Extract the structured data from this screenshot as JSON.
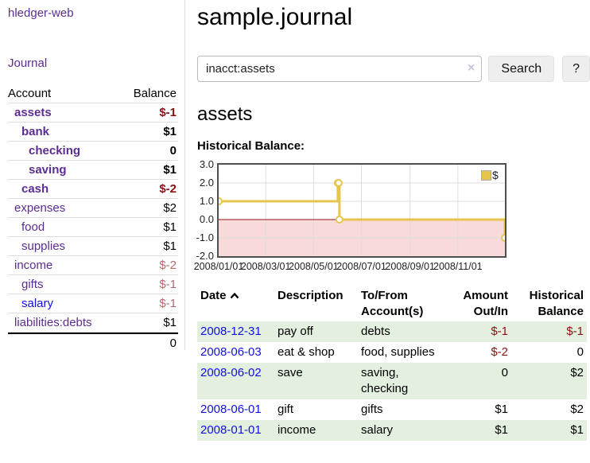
{
  "sidebar": {
    "app_title": "hledger-web",
    "journal_link": "Journal",
    "accounts": {
      "col_account": "Account",
      "col_balance": "Balance",
      "rows": [
        {
          "name": "assets",
          "balance": "$-1"
        },
        {
          "name": "bank",
          "balance": "$1"
        },
        {
          "name": "checking",
          "balance": "0"
        },
        {
          "name": "saving",
          "balance": "$1"
        },
        {
          "name": "cash",
          "balance": "$-2"
        },
        {
          "name": "expenses",
          "balance": "$2"
        },
        {
          "name": "food",
          "balance": "$1"
        },
        {
          "name": "supplies",
          "balance": "$1"
        },
        {
          "name": "income",
          "balance": "$-2"
        },
        {
          "name": "gifts",
          "balance": "$-1"
        },
        {
          "name": "salary",
          "balance": "$-1"
        },
        {
          "name": "liabilities:debts",
          "balance": "$1"
        }
      ],
      "total": "0"
    }
  },
  "header": {
    "title": "sample.journal"
  },
  "search": {
    "value": "inacct:assets",
    "clear_icon": "×",
    "button_label": "Search",
    "help_label": "?"
  },
  "account_view": {
    "heading": "assets",
    "chart_caption": "Historical Balance:"
  },
  "chart_data": {
    "type": "line",
    "step": true,
    "title": "Historical Balance",
    "legend": "$",
    "ylim": [
      -2,
      3
    ],
    "y_tick_values": [
      3,
      2,
      1,
      0,
      -1,
      -2
    ],
    "y_tick_labels": [
      "3.0",
      "2.0",
      "1.0",
      "0.0",
      "-1.0",
      "-2.0"
    ],
    "x_ticks": [
      "2008/01/01",
      "2008/03/01",
      "2008/05/01",
      "2008/07/01",
      "2008/09/01",
      "2008/11/01"
    ],
    "series": [
      {
        "name": "$",
        "color": "#e7c44d",
        "points": [
          [
            "2008/01/01",
            1
          ],
          [
            "2008/06/01",
            2
          ],
          [
            "2008/06/02",
            2
          ],
          [
            "2008/06/03",
            0
          ],
          [
            "2008/12/31",
            -1
          ]
        ]
      }
    ],
    "negative_fill": "#f9dada",
    "zero_line_color": "#8f1010",
    "grid_color": "#dddddd",
    "grid": true,
    "legend_position": "top-right"
  },
  "register": {
    "headers": {
      "date": "Date",
      "description": "Description",
      "accounts": "To/From Account(s)",
      "amount": "Amount Out/In",
      "balance": "Historical Balance"
    },
    "rows": [
      {
        "date": "2008-12-31",
        "description": "pay off",
        "accounts": "debts",
        "amount": "$-1",
        "balance": "$-1"
      },
      {
        "date": "2008-06-03",
        "description": "eat & shop",
        "accounts": "food, supplies",
        "amount": "$-2",
        "balance": "0"
      },
      {
        "date": "2008-06-02",
        "description": "save",
        "accounts": "saving, checking",
        "amount": "0",
        "balance": "$2"
      },
      {
        "date": "2008-06-01",
        "description": "gift",
        "accounts": "gifts",
        "amount": "$1",
        "balance": "$2"
      },
      {
        "date": "2008-01-01",
        "description": "income",
        "accounts": "salary",
        "amount": "$1",
        "balance": "$1"
      }
    ]
  },
  "colors": {
    "accent_purple": "#5c2d91",
    "link_blue": "#1111dd",
    "negative_strong": "#8b1212",
    "negative_soft": "#b36b6b",
    "row_stripe_green": "#e3efdf",
    "button_bg": "#eeeeee"
  }
}
